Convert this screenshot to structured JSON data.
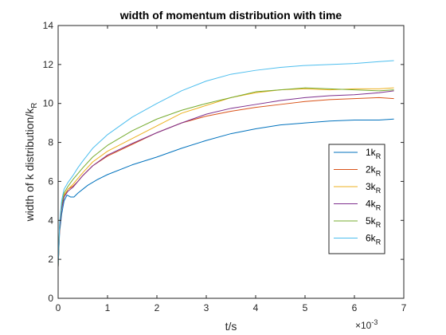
{
  "chart_data": {
    "type": "line",
    "title": "width of momentum distribution with time",
    "xlabel": "t/s",
    "ylabel": "width of k distribution/k",
    "ylabel_subscript": "R",
    "x_multiplier": "×10",
    "x_multiplier_exponent": "-3",
    "xlim": [
      0,
      7
    ],
    "ylim": [
      0,
      14
    ],
    "xticks": [
      0,
      1,
      2,
      3,
      4,
      5,
      6,
      7
    ],
    "yticks": [
      0,
      2,
      4,
      6,
      8,
      10,
      12,
      14
    ],
    "grid": false,
    "legend_position": "right",
    "series": [
      {
        "name": "1k",
        "name_subscript": "R",
        "color": "#0072BD",
        "points": [
          [
            0,
            1.6
          ],
          [
            0.03,
            3.4
          ],
          [
            0.07,
            4.3
          ],
          [
            0.12,
            5.0
          ],
          [
            0.18,
            5.3
          ],
          [
            0.25,
            5.2
          ],
          [
            0.32,
            5.2
          ],
          [
            0.4,
            5.4
          ],
          [
            0.5,
            5.6
          ],
          [
            0.6,
            5.8
          ],
          [
            0.8,
            6.1
          ],
          [
            1.0,
            6.35
          ],
          [
            1.5,
            6.85
          ],
          [
            2.0,
            7.25
          ],
          [
            2.5,
            7.7
          ],
          [
            3.0,
            8.1
          ],
          [
            3.5,
            8.45
          ],
          [
            4.0,
            8.7
          ],
          [
            4.5,
            8.9
          ],
          [
            5.0,
            9.0
          ],
          [
            5.5,
            9.1
          ],
          [
            6.0,
            9.15
          ],
          [
            6.5,
            9.15
          ],
          [
            6.8,
            9.2
          ]
        ]
      },
      {
        "name": "2k",
        "name_subscript": "R",
        "color": "#D95319",
        "points": [
          [
            0,
            1.6
          ],
          [
            0.03,
            3.6
          ],
          [
            0.07,
            4.6
          ],
          [
            0.12,
            5.2
          ],
          [
            0.2,
            5.6
          ],
          [
            0.3,
            5.75
          ],
          [
            0.4,
            6.0
          ],
          [
            0.5,
            6.3
          ],
          [
            0.7,
            6.8
          ],
          [
            1.0,
            7.3
          ],
          [
            1.5,
            7.9
          ],
          [
            2.0,
            8.5
          ],
          [
            2.5,
            9.0
          ],
          [
            3.0,
            9.35
          ],
          [
            3.5,
            9.6
          ],
          [
            4.0,
            9.8
          ],
          [
            4.5,
            9.95
          ],
          [
            5.0,
            10.1
          ],
          [
            5.5,
            10.2
          ],
          [
            6.0,
            10.25
          ],
          [
            6.5,
            10.3
          ],
          [
            6.8,
            10.25
          ]
        ]
      },
      {
        "name": "3k",
        "name_subscript": "R",
        "color": "#EDB120",
        "points": [
          [
            0,
            1.6
          ],
          [
            0.03,
            3.7
          ],
          [
            0.07,
            4.7
          ],
          [
            0.12,
            5.3
          ],
          [
            0.2,
            5.6
          ],
          [
            0.3,
            5.85
          ],
          [
            0.4,
            6.15
          ],
          [
            0.5,
            6.45
          ],
          [
            0.7,
            7.0
          ],
          [
            1.0,
            7.55
          ],
          [
            1.5,
            8.2
          ],
          [
            2.0,
            8.85
          ],
          [
            2.5,
            9.5
          ],
          [
            3.0,
            9.9
          ],
          [
            3.5,
            10.3
          ],
          [
            4.0,
            10.55
          ],
          [
            4.5,
            10.7
          ],
          [
            5.0,
            10.75
          ],
          [
            5.5,
            10.7
          ],
          [
            6.0,
            10.75
          ],
          [
            6.5,
            10.75
          ],
          [
            6.8,
            10.8
          ]
        ]
      },
      {
        "name": "4k",
        "name_subscript": "R",
        "color": "#7E2F8E",
        "points": [
          [
            0,
            1.6
          ],
          [
            0.03,
            3.6
          ],
          [
            0.07,
            4.6
          ],
          [
            0.12,
            5.2
          ],
          [
            0.2,
            5.5
          ],
          [
            0.3,
            5.7
          ],
          [
            0.4,
            6.0
          ],
          [
            0.5,
            6.3
          ],
          [
            0.7,
            6.8
          ],
          [
            1.0,
            7.35
          ],
          [
            1.5,
            7.95
          ],
          [
            2.0,
            8.5
          ],
          [
            2.5,
            9.0
          ],
          [
            3.0,
            9.45
          ],
          [
            3.5,
            9.75
          ],
          [
            4.0,
            9.95
          ],
          [
            4.5,
            10.15
          ],
          [
            5.0,
            10.3
          ],
          [
            5.5,
            10.4
          ],
          [
            6.0,
            10.45
          ],
          [
            6.5,
            10.55
          ],
          [
            6.8,
            10.65
          ]
        ]
      },
      {
        "name": "5k",
        "name_subscript": "R",
        "color": "#77AC30",
        "points": [
          [
            0,
            1.6
          ],
          [
            0.03,
            3.8
          ],
          [
            0.07,
            4.8
          ],
          [
            0.12,
            5.4
          ],
          [
            0.2,
            5.75
          ],
          [
            0.3,
            6.1
          ],
          [
            0.4,
            6.4
          ],
          [
            0.5,
            6.7
          ],
          [
            0.7,
            7.25
          ],
          [
            1.0,
            7.85
          ],
          [
            1.5,
            8.6
          ],
          [
            2.0,
            9.2
          ],
          [
            2.5,
            9.65
          ],
          [
            3.0,
            10.0
          ],
          [
            3.5,
            10.3
          ],
          [
            4.0,
            10.6
          ],
          [
            4.5,
            10.7
          ],
          [
            5.0,
            10.8
          ],
          [
            5.5,
            10.75
          ],
          [
            6.0,
            10.7
          ],
          [
            6.5,
            10.65
          ],
          [
            6.8,
            10.7
          ]
        ]
      },
      {
        "name": "6k",
        "name_subscript": "R",
        "color": "#4DBEEE",
        "points": [
          [
            0,
            1.6
          ],
          [
            0.03,
            3.9
          ],
          [
            0.07,
            5.0
          ],
          [
            0.12,
            5.6
          ],
          [
            0.2,
            5.95
          ],
          [
            0.3,
            6.3
          ],
          [
            0.4,
            6.7
          ],
          [
            0.5,
            7.05
          ],
          [
            0.7,
            7.7
          ],
          [
            1.0,
            8.4
          ],
          [
            1.5,
            9.3
          ],
          [
            2.0,
            10.0
          ],
          [
            2.5,
            10.65
          ],
          [
            3.0,
            11.15
          ],
          [
            3.5,
            11.5
          ],
          [
            4.0,
            11.7
          ],
          [
            4.5,
            11.85
          ],
          [
            5.0,
            11.95
          ],
          [
            5.5,
            12.0
          ],
          [
            6.0,
            12.05
          ],
          [
            6.5,
            12.15
          ],
          [
            6.8,
            12.2
          ]
        ]
      }
    ]
  }
}
